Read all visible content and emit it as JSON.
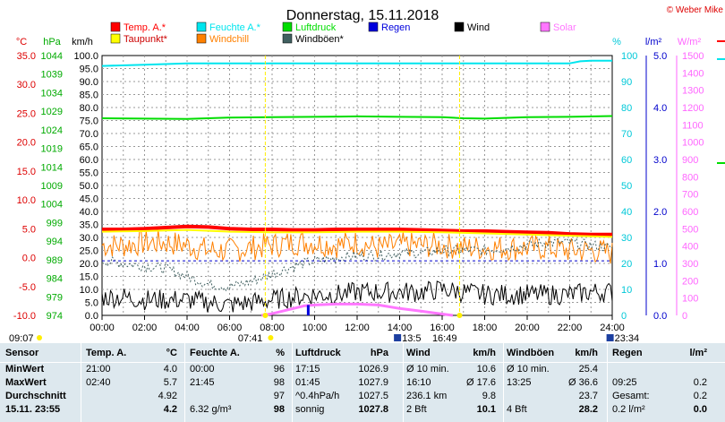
{
  "chart_data": {
    "type": "line",
    "title": "Donnerstag, 15.11.2018",
    "copyright": "© Weber Mike",
    "x_ticks": [
      "00:00",
      "02:00",
      "04:00",
      "06:00",
      "08:00",
      "10:00",
      "12:00",
      "14:00",
      "16:00",
      "18:00",
      "20:00",
      "22:00",
      "24:00"
    ],
    "axes": {
      "temp": {
        "unit": "°C",
        "ticks": [
          "35.0",
          "30.0",
          "25.0",
          "20.0",
          "15.0",
          "10.0",
          "5.0",
          "0.0",
          "-5.0",
          "-10.0"
        ],
        "range": [
          -10,
          35
        ]
      },
      "press": {
        "unit": "hPa",
        "ticks": [
          "1044",
          "1039",
          "1034",
          "1029",
          "1024",
          "1019",
          "1014",
          "1009",
          "1004",
          "999",
          "994",
          "989",
          "984",
          "979",
          "974"
        ],
        "range": [
          974,
          1044
        ]
      },
      "wind": {
        "unit": "km/h",
        "ticks": [
          "100.0",
          "95.0",
          "90.0",
          "85.0",
          "80.0",
          "75.0",
          "70.0",
          "65.0",
          "60.0",
          "55.0",
          "50.0",
          "45.0",
          "40.0",
          "35.0",
          "30.0",
          "25.0",
          "20.0",
          "15.0",
          "10.0",
          "5.0",
          "0.0"
        ],
        "range": [
          0,
          100
        ]
      },
      "hum": {
        "unit": "%",
        "ticks": [
          "100",
          "90",
          "80",
          "70",
          "60",
          "50",
          "40",
          "30",
          "20",
          "10",
          "0"
        ],
        "range": [
          0,
          100
        ]
      },
      "rain": {
        "unit": "l/m²",
        "ticks": [
          "5.0",
          "4.0",
          "3.0",
          "2.0",
          "1.0",
          "0.0"
        ],
        "range": [
          0,
          5
        ]
      },
      "solar": {
        "unit": "W/m²",
        "ticks": [
          "1500",
          "1400",
          "1300",
          "1200",
          "1100",
          "1000",
          "900",
          "800",
          "700",
          "600",
          "500",
          "400",
          "300",
          "200",
          "100",
          "0"
        ],
        "range": [
          0,
          1500
        ]
      }
    },
    "legend": [
      {
        "label": "Temp. A.*",
        "color": "#ff0000"
      },
      {
        "label": "Feuchte A.*",
        "color": "#00e5ee"
      },
      {
        "label": "Luftdruck",
        "color": "#00dd00"
      },
      {
        "label": "Regen",
        "color": "#0000dd"
      },
      {
        "label": "Wind",
        "color": "#000000"
      },
      {
        "label": "Solar",
        "color": "#ff77ff"
      },
      {
        "label": "Taupunkt*",
        "color": "#ffff00"
      },
      {
        "label": "Windchill",
        "color": "#ff8000"
      },
      {
        "label": "Windböen*",
        "color": "#406060"
      }
    ],
    "series": [
      {
        "name": "Temp. A.*",
        "axis": "temp",
        "color": "#ff0000",
        "width": 4,
        "x": [
          0,
          1,
          2,
          3,
          4,
          5,
          6,
          7,
          8,
          9,
          10,
          11,
          12,
          13,
          14,
          15,
          16,
          17,
          18,
          19,
          20,
          21,
          22,
          23,
          24
        ],
        "y": [
          4.9,
          4.9,
          5.0,
          5.2,
          5.4,
          5.3,
          5.0,
          4.9,
          4.9,
          4.8,
          4.8,
          4.9,
          4.9,
          4.9,
          4.9,
          4.8,
          4.7,
          4.6,
          4.6,
          4.5,
          4.4,
          4.3,
          4.1,
          4.0,
          4.0
        ]
      },
      {
        "name": "Taupunkt*",
        "axis": "temp",
        "color": "#ffff00",
        "width": 2,
        "x": [
          0,
          2,
          4,
          6,
          8,
          10,
          12,
          14,
          16,
          18,
          20,
          22,
          24
        ],
        "y": [
          4.5,
          4.6,
          4.8,
          4.5,
          4.4,
          4.4,
          4.5,
          4.5,
          4.4,
          4.2,
          4.0,
          3.8,
          3.6
        ]
      },
      {
        "name": "Feuchte A.*",
        "axis": "hum",
        "color": "#00e5ee",
        "width": 2,
        "x": [
          0,
          2,
          4,
          6,
          8,
          10,
          12,
          14,
          16,
          18,
          20,
          22,
          22.5,
          23,
          24
        ],
        "y": [
          96,
          96.5,
          97,
          97,
          97,
          97,
          97,
          97,
          97,
          97,
          97,
          97,
          97.8,
          98,
          98
        ]
      },
      {
        "name": "Luftdruck",
        "axis": "press",
        "color": "#00dd00",
        "width": 2,
        "x": [
          0,
          2,
          4,
          6,
          8,
          10,
          12,
          14,
          16,
          17,
          18,
          20,
          22,
          24
        ],
        "y": [
          1027.1,
          1027.0,
          1026.9,
          1027.3,
          1027.4,
          1027.5,
          1027.6,
          1027.5,
          1027.4,
          1027.1,
          1027.0,
          1027.4,
          1027.5,
          1027.7
        ]
      },
      {
        "name": "Solar",
        "axis": "solar",
        "color": "#ff77ff",
        "width": 3,
        "x": [
          7.5,
          8,
          8.5,
          9,
          9.5,
          10,
          11,
          12,
          13,
          14,
          15,
          16,
          16.5
        ],
        "y": [
          0,
          10,
          25,
          40,
          55,
          60,
          65,
          65,
          60,
          40,
          25,
          8,
          0
        ]
      }
    ],
    "noisy_series": [
      {
        "name": "Windchill",
        "axis": "wind",
        "color": "#ff8000",
        "base": [
          27,
          27,
          28,
          28,
          27,
          25,
          25,
          26,
          27,
          28,
          28,
          27,
          28,
          26,
          27,
          27,
          27,
          26,
          26,
          26,
          26,
          26,
          25,
          25,
          24
        ],
        "amp": 5
      },
      {
        "name": "Windböen*",
        "axis": "wind",
        "color": "#406060",
        "base": [
          21,
          20,
          19,
          18,
          15,
          12,
          11,
          13,
          16,
          19,
          21,
          22,
          23,
          23,
          24,
          24,
          25,
          25,
          25,
          26,
          27,
          28,
          28,
          27,
          26
        ],
        "amp": 2
      },
      {
        "name": "Wind",
        "axis": "wind",
        "color": "#000000",
        "base": [
          7,
          7,
          6,
          6,
          6,
          5,
          4,
          5,
          6,
          7,
          8,
          8,
          9,
          9,
          9,
          9,
          10,
          9,
          8,
          8,
          8,
          8,
          8,
          9,
          9
        ],
        "amp": 4
      }
    ],
    "wind_reference_line": 21,
    "rain_mark": {
      "x": 9.7,
      "y": 0.2
    },
    "markers": {
      "sunrise": "07:41",
      "sunset": "16:49",
      "moon_start": "13:5",
      "moon_end": "23:34",
      "left_time": "09:07"
    }
  },
  "stats": {
    "headers": [
      "Sensor",
      "Temp. A.",
      "°C",
      "Feuchte A.",
      "%",
      "Luftdruck",
      "hPa",
      "Wind",
      "km/h",
      "Windböen",
      "km/h",
      "Regen",
      "l/m²"
    ],
    "rows": [
      [
        "MinWert",
        "21:00",
        "4.0",
        "00:00",
        "96",
        "17:15",
        "1026.9",
        "Ø 10 min.",
        "10.6",
        "Ø 10 min.",
        "25.4",
        "",
        ""
      ],
      [
        "MaxWert",
        "02:40",
        "5.7",
        "21:45",
        "98",
        "01:45",
        "1027.9",
        "16:10",
        "Ø 17.6",
        "13:25",
        "Ø 36.6",
        "09:25",
        "0.2"
      ],
      [
        "Durchschnitt",
        "",
        "4.92",
        "",
        "97",
        "^0.4hPa/h",
        "1027.5",
        "236.1 km",
        "9.8",
        "",
        "23.7",
        "Gesamt:",
        "0.2"
      ],
      [
        "15.11. 23:55",
        "",
        "4.2",
        "6.32 g/m³",
        "98",
        "sonnig",
        "1027.8",
        "2 Bft",
        "10.1",
        "4 Bft",
        "28.2",
        "0.2 l/m²",
        "0.0"
      ]
    ]
  }
}
